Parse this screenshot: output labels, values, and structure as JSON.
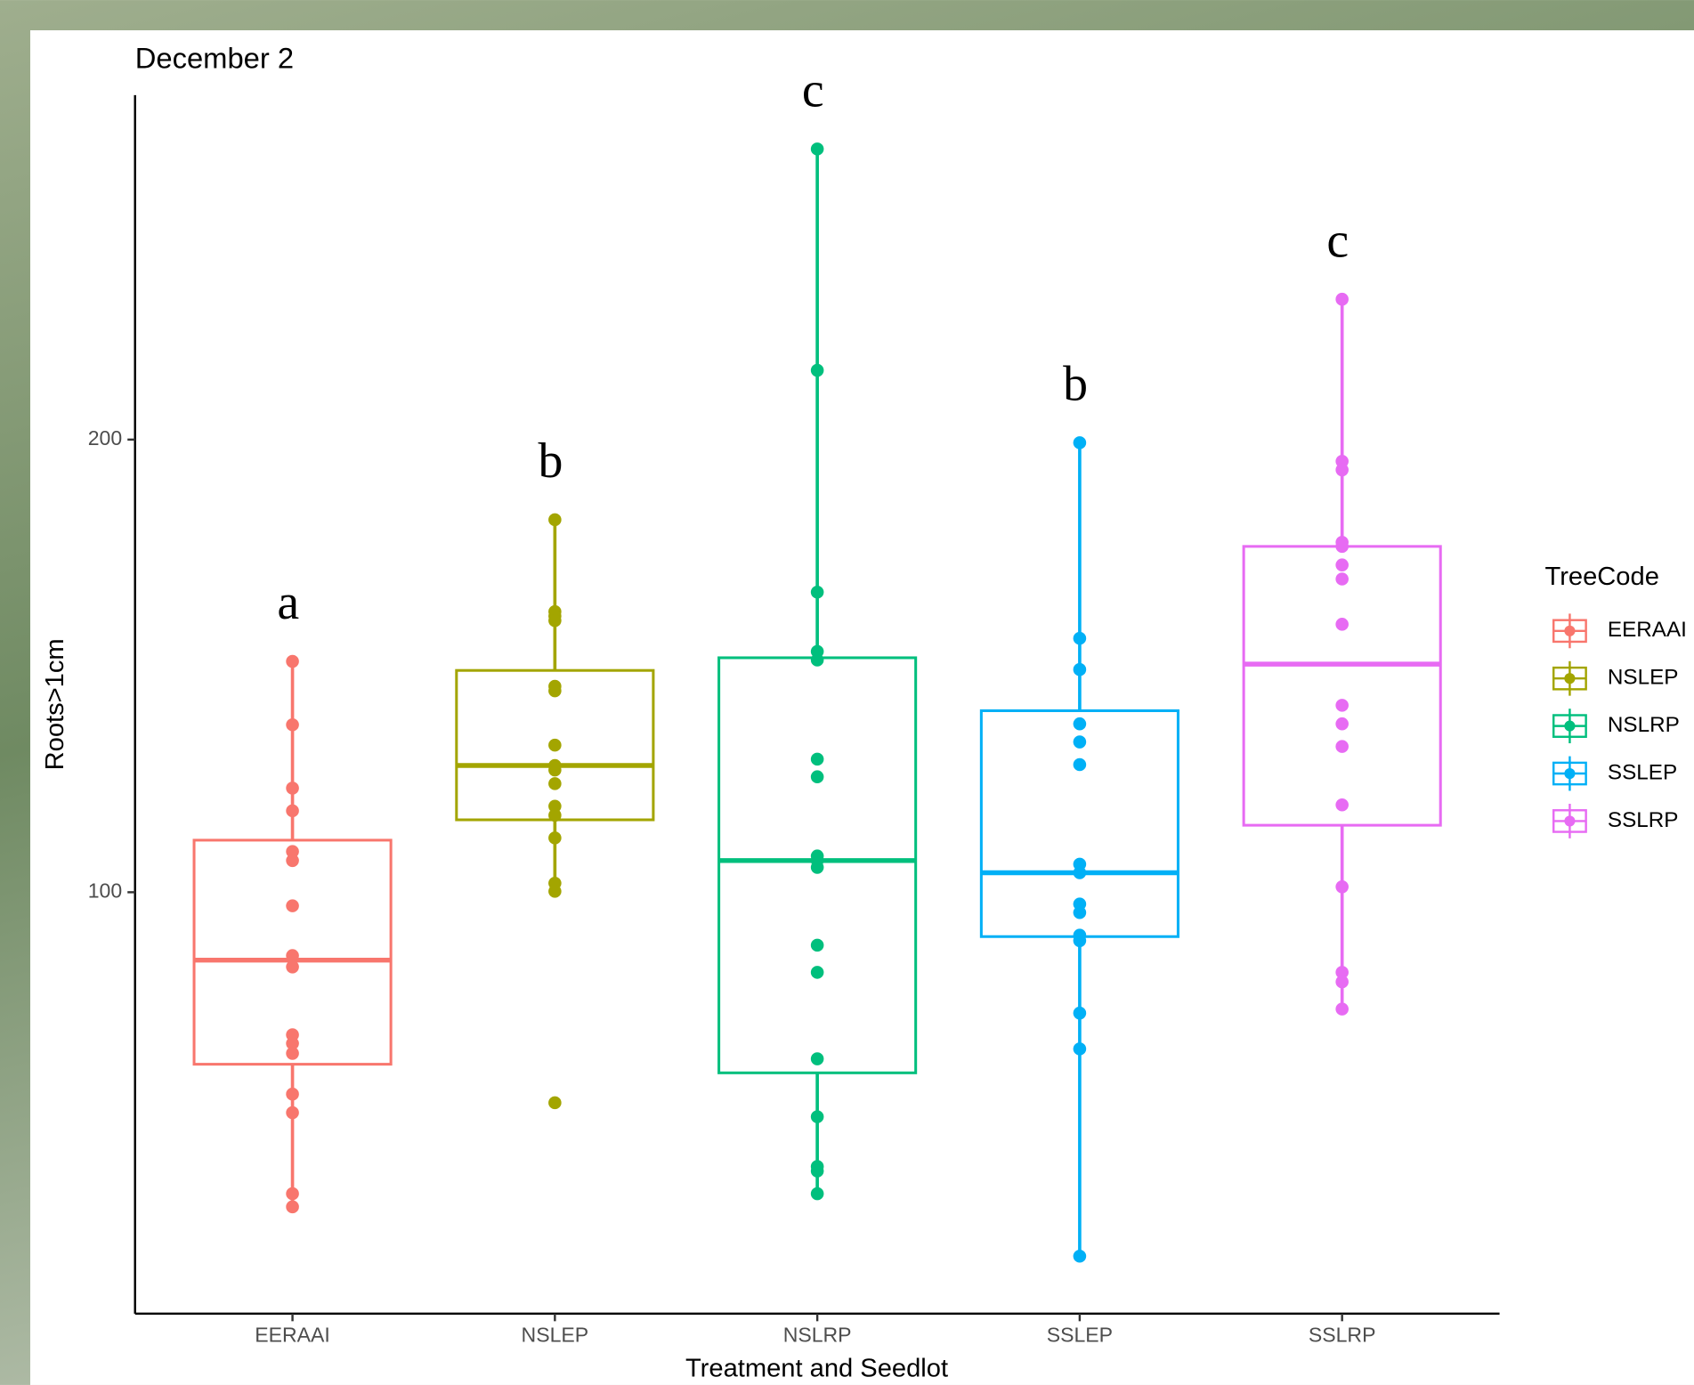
{
  "chart_data": {
    "type": "box",
    "title": "December 2",
    "x_label": "Treatment and Seedlot",
    "y_label": "Roots>1cm",
    "legend_title": "TreeCode",
    "categories": [
      "EERAAI",
      "NSLEP",
      "NSLRP",
      "SSLEP",
      "SSLRP"
    ],
    "ylim": [
      6.9,
      276.1
    ],
    "yticks": [
      100,
      200
    ],
    "grid": false,
    "groups": [
      {
        "name": "EERAAI",
        "color": "#F8766D",
        "annotation": "a",
        "whisker_low": 30.5,
        "q1": 62,
        "median": 85,
        "q3": 111.5,
        "whisker_high": 151,
        "points": [
          151,
          137,
          123,
          118,
          109,
          107,
          97,
          86,
          83.5,
          68.5,
          66.6,
          64.4,
          55.4,
          51.3,
          33.4,
          30.5
        ]
      },
      {
        "name": "NSLEP",
        "color": "#A3A500",
        "annotation": "b",
        "whisker_low": 100.2,
        "q1": 116,
        "median": 128,
        "q3": 149,
        "whisker_high": 182.3,
        "points": [
          182.3,
          162,
          161,
          160,
          145.5,
          144.5,
          132.5,
          128,
          127,
          124,
          119,
          117,
          112,
          102,
          100.2,
          53.5
        ]
      },
      {
        "name": "NSLRP",
        "color": "#00BF7D",
        "annotation": "c",
        "whisker_low": 33.4,
        "q1": 60.1,
        "median": 107,
        "q3": 151.8,
        "whisker_high": 264.2,
        "points": [
          264.2,
          215.3,
          166.3,
          153.2,
          151.3,
          129.4,
          125.5,
          108,
          107,
          105.5,
          88.3,
          82.3,
          63.2,
          50.4,
          39.4,
          38.4,
          33.4
        ]
      },
      {
        "name": "SSLEP",
        "color": "#00B0F6",
        "annotation": "b",
        "whisker_low": 19.6,
        "q1": 90.2,
        "median": 104.3,
        "q3": 140.1,
        "whisker_high": 199.3,
        "points": [
          199.3,
          156.1,
          149.2,
          137.2,
          133.2,
          128.2,
          106.2,
          104.3,
          97.4,
          95.5,
          90.5,
          89.3,
          73.3,
          65.4,
          19.6
        ]
      },
      {
        "name": "SSLRP",
        "color": "#E76BF3",
        "annotation": "c",
        "whisker_low": 74.2,
        "q1": 114.8,
        "median": 150.4,
        "q3": 176.4,
        "whisker_high": 231,
        "points": [
          231,
          195.2,
          193.3,
          177.3,
          176.4,
          172.3,
          169.2,
          159.2,
          141.3,
          137.2,
          132.2,
          119.3,
          101.2,
          82.3,
          80.2,
          74.2
        ]
      }
    ]
  }
}
